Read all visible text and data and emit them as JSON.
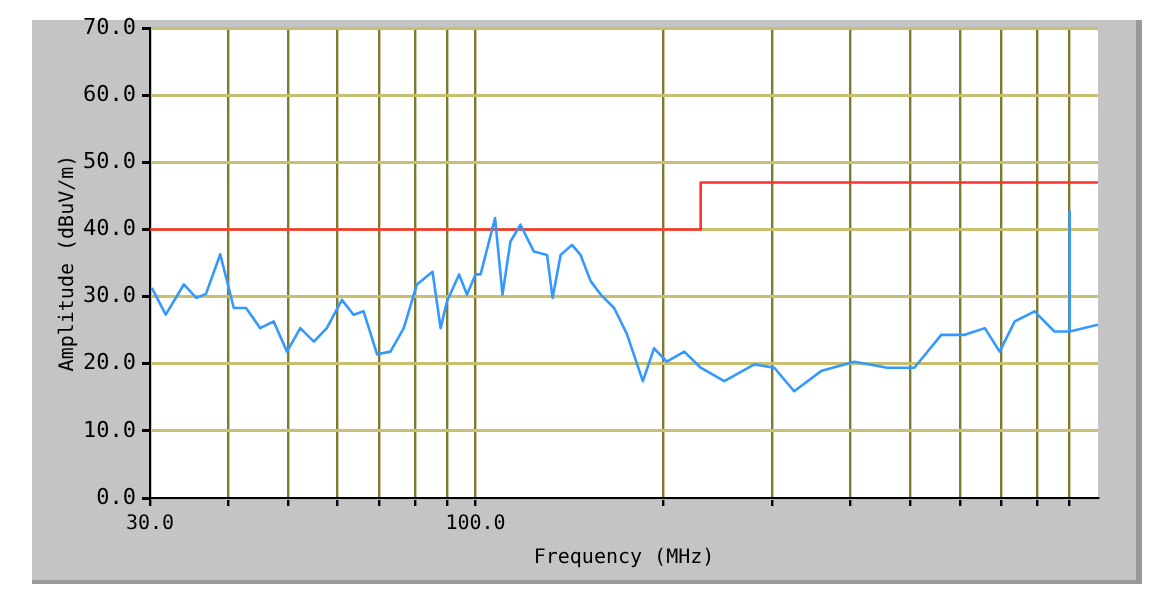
{
  "chart_data": {
    "type": "line",
    "xlabel": "Frequency (MHz)",
    "ylabel": "Amplitude (dBuV/m)",
    "log": "x",
    "grid": true,
    "legend": false,
    "xlim": [
      30,
      1000
    ],
    "ylim": [
      0,
      70
    ],
    "xticks": [
      {
        "value": 30,
        "label": "30.0"
      },
      {
        "value": 40,
        "label": null
      },
      {
        "value": 50,
        "label": null
      },
      {
        "value": 60,
        "label": null
      },
      {
        "value": 70,
        "label": null
      },
      {
        "value": 80,
        "label": null
      },
      {
        "value": 90,
        "label": null
      },
      {
        "value": 100,
        "label": "100.0"
      },
      {
        "value": 200,
        "label": null
      },
      {
        "value": 300,
        "label": null
      },
      {
        "value": 400,
        "label": null
      },
      {
        "value": 500,
        "label": null
      },
      {
        "value": 600,
        "label": null
      },
      {
        "value": 700,
        "label": null
      },
      {
        "value": 800,
        "label": null
      },
      {
        "value": 900,
        "label": null
      }
    ],
    "yticks": [
      {
        "value": 0,
        "label": "0.0"
      },
      {
        "value": 10,
        "label": "10.0"
      },
      {
        "value": 20,
        "label": "20.0"
      },
      {
        "value": 30,
        "label": "30.0"
      },
      {
        "value": 40,
        "label": "40.0"
      },
      {
        "value": 50,
        "label": "50.0"
      },
      {
        "value": 60,
        "label": "60.0"
      },
      {
        "value": 70,
        "label": "70.0"
      }
    ],
    "series": [
      {
        "color": "#3399ff",
        "x": [
          30.2,
          31.8,
          34.0,
          35.6,
          36.9,
          38.9,
          40.9,
          42.8,
          45.1,
          47.4,
          49.8,
          52.3,
          55.0,
          57.7,
          61.0,
          63.7,
          66.1,
          69.5,
          73.0,
          76.7,
          80.5,
          85.3,
          87.9,
          90.0,
          94.1,
          96.9,
          100,
          101.9,
          107.5,
          110.5,
          113.8,
          118.1,
          124.1,
          130.3,
          133.0,
          137.0,
          142.9,
          147.5,
          153.1,
          158.9,
          167.0,
          175.1,
          185.7,
          193.6,
          202.9,
          216.5,
          230,
          251,
          280.5,
          302,
          325,
          359,
          406,
          459,
          507,
          560,
          611,
          658,
          695,
          735,
          791,
          851,
          899,
          900,
          901,
          1000
        ],
        "values": [
          31.3,
          27.3,
          31.8,
          29.8,
          30.4,
          36.3,
          28.3,
          28.3,
          25.3,
          26.3,
          21.8,
          25.3,
          23.3,
          25.3,
          29.5,
          27.3,
          27.8,
          21.4,
          21.8,
          25.3,
          31.8,
          33.7,
          25.3,
          29.3,
          33.3,
          30.3,
          33.3,
          33.3,
          41.7,
          30.3,
          38.2,
          40.7,
          36.7,
          36.2,
          29.8,
          36.2,
          37.7,
          36.2,
          32.3,
          30.3,
          28.3,
          24.4,
          17.4,
          22.3,
          20.3,
          21.8,
          19.4,
          17.4,
          19.9,
          19.4,
          15.9,
          18.9,
          20.3,
          19.4,
          19.4,
          24.3,
          24.3,
          25.3,
          21.8,
          26.3,
          27.8,
          24.8,
          24.8,
          42.7,
          24.8,
          25.8
        ]
      },
      {
        "color": "#ff3030",
        "x": [
          30,
          230,
          230,
          1000
        ],
        "values": [
          40,
          40,
          47,
          47
        ]
      }
    ]
  }
}
